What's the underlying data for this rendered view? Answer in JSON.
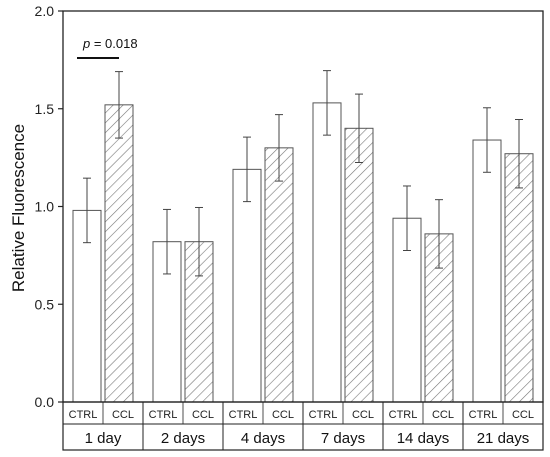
{
  "chart_data": {
    "type": "bar",
    "ylabel": "Relative Fluorescence",
    "xlabel": "",
    "ylim": [
      0.0,
      2.0
    ],
    "yticks": [
      "0.0",
      "0.5",
      "1.0",
      "1.5",
      "2.0"
    ],
    "grid": false,
    "groups": [
      "1 day",
      "2 days",
      "4 days",
      "7 days",
      "14 days",
      "21 days"
    ],
    "subcategories": [
      "CTRL",
      "CCL"
    ],
    "series": [
      {
        "name": "CTRL",
        "fill": "open",
        "values": [
          0.98,
          0.82,
          1.19,
          1.53,
          0.94,
          1.34
        ],
        "errors": [
          0.165,
          0.165,
          0.165,
          0.165,
          0.165,
          0.165
        ]
      },
      {
        "name": "CCL",
        "fill": "hatched",
        "values": [
          1.52,
          0.82,
          1.3,
          1.4,
          0.86,
          1.27
        ],
        "errors": [
          0.17,
          0.175,
          0.17,
          0.175,
          0.175,
          0.175
        ]
      }
    ],
    "annotation": {
      "italic": "p",
      "text": " = 0.018",
      "group_index": 0
    },
    "colors": {
      "bar_stroke": "#555555",
      "hatch": "#777777",
      "axis": "#222222"
    }
  }
}
